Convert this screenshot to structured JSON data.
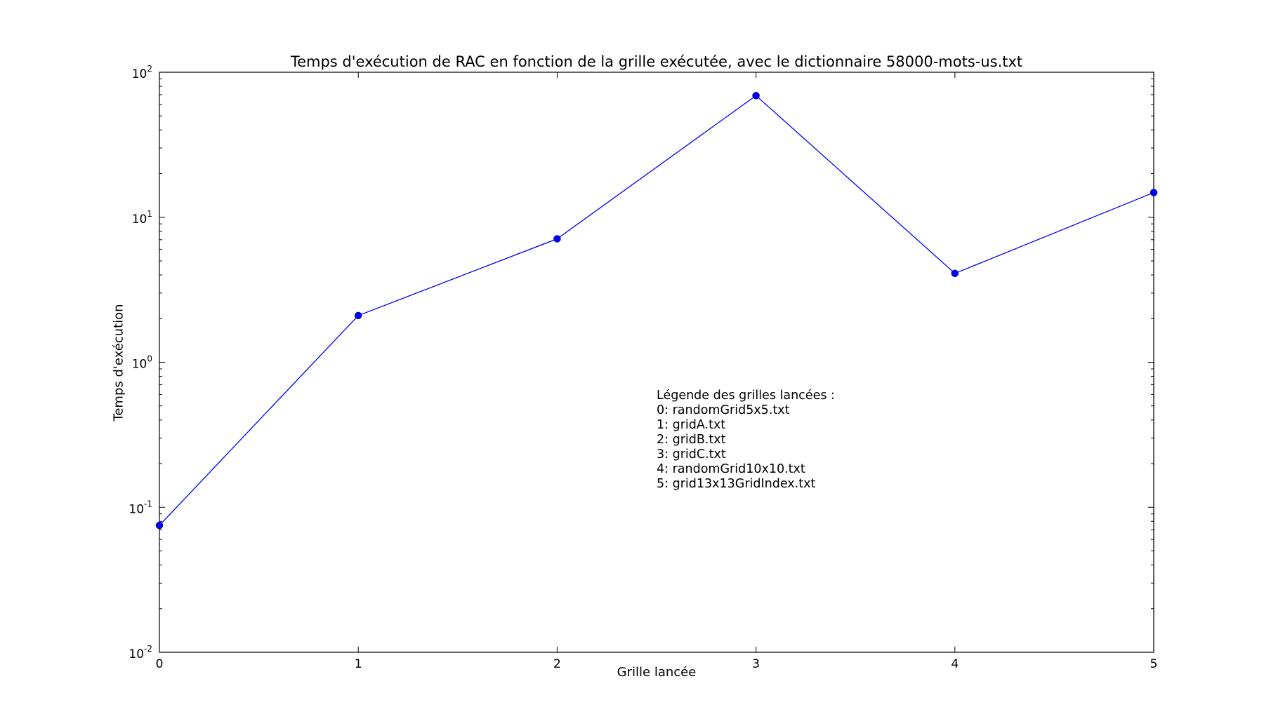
{
  "chart_data": {
    "type": "line",
    "title": "Temps d'exécution de RAC en fonction de la grille exécutée, avec le dictionnaire 58000-mots-us.txt",
    "xlabel": "Grille lancée",
    "ylabel": "Temps d'exécution",
    "x": [
      0,
      1,
      2,
      3,
      4,
      5
    ],
    "xlim": [
      0,
      5
    ],
    "x_tick_labels": [
      "0",
      "1",
      "2",
      "3",
      "4",
      "5"
    ],
    "yscale": "log",
    "ylim": [
      0.01,
      100
    ],
    "y_tick_labels": [
      {
        "base": "10",
        "exp": "-2"
      },
      {
        "base": "10",
        "exp": "-1"
      },
      {
        "base": "10",
        "exp": "0"
      },
      {
        "base": "10",
        "exp": "1"
      },
      {
        "base": "10",
        "exp": "2"
      }
    ],
    "series": [
      {
        "values": [
          0.075,
          2.1,
          7.1,
          69,
          4.1,
          14.8
        ],
        "color": "#0000ff",
        "marker": "circle"
      }
    ],
    "grid": false,
    "annotation": {
      "lines": [
        "Légende des grilles lancées :",
        "0: randomGrid5x5.txt",
        "1: gridA.txt",
        "2: gridB.txt",
        "3: gridC.txt",
        "4: randomGrid10x10.txt",
        "5: grid13x13GridIndex.txt"
      ]
    }
  }
}
